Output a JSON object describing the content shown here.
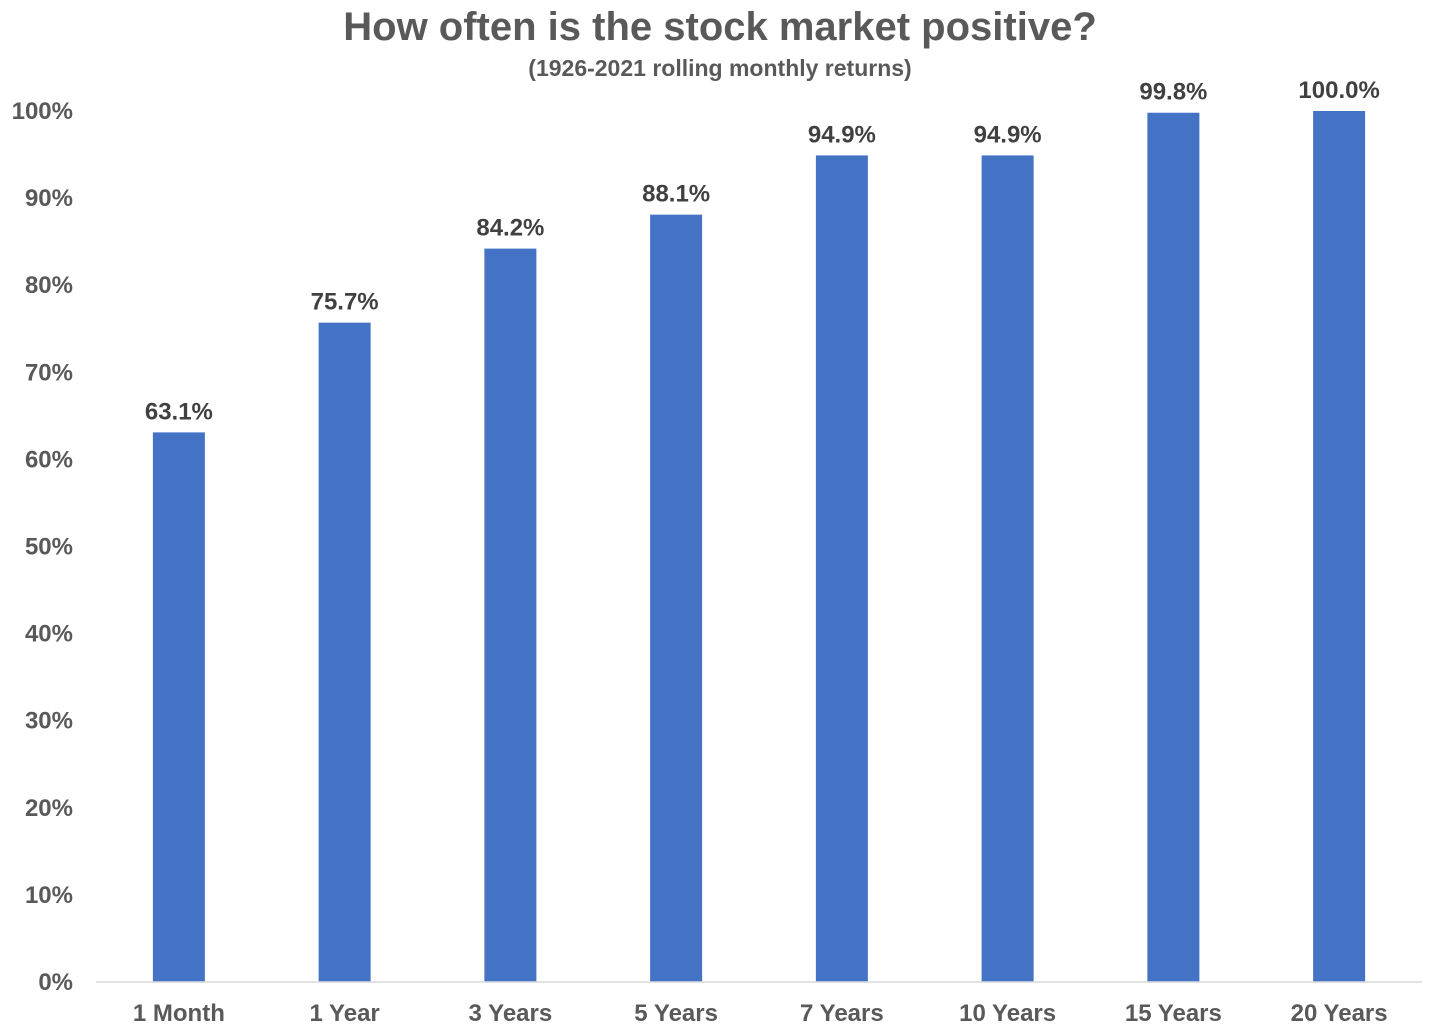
{
  "chart_data": {
    "type": "bar",
    "title": "How often is the stock market positive?",
    "subtitle": "(1926-2021 rolling monthly returns)",
    "xlabel": "",
    "ylabel": "",
    "categories": [
      "1 Month",
      "1 Year",
      "3 Years",
      "5 Years",
      "7 Years",
      "10 Years",
      "15 Years",
      "20 Years"
    ],
    "values": [
      63.1,
      75.7,
      84.2,
      88.1,
      94.9,
      94.9,
      99.8,
      100.0
    ],
    "data_labels": [
      "63.1%",
      "75.7%",
      "84.2%",
      "88.1%",
      "94.9%",
      "94.9%",
      "99.8%",
      "100.0%"
    ],
    "ylim": [
      0,
      100
    ],
    "y_ticks": [
      0,
      10,
      20,
      30,
      40,
      50,
      60,
      70,
      80,
      90,
      100
    ],
    "y_tick_labels": [
      "0%",
      "10%",
      "20%",
      "30%",
      "40%",
      "50%",
      "60%",
      "70%",
      "80%",
      "90%",
      "100%"
    ],
    "grid": false,
    "legend": "none",
    "bar_color": "#4472C4",
    "axis_color": "#D9D9D9",
    "text_color": "#595959"
  }
}
